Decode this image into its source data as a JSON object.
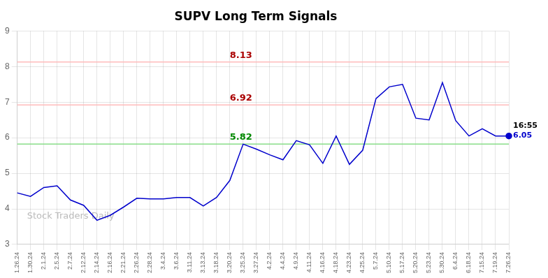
{
  "chart_data": {
    "type": "line",
    "title": "SUPV Long Term Signals",
    "categories": [
      "1.26.24",
      "1.30.24",
      "2.1.24",
      "2.5.24",
      "2.7.24",
      "2.12.24",
      "2.14.24",
      "2.16.24",
      "2.21.24",
      "2.26.24",
      "2.28.24",
      "3.4.24",
      "3.6.24",
      "3.11.24",
      "3.13.24",
      "3.18.24",
      "3.20.24",
      "3.25.24",
      "3.27.24",
      "4.2.24",
      "4.4.24",
      "4.9.24",
      "4.11.24",
      "4.16.24",
      "4.18.24",
      "4.23.24",
      "4.25.24",
      "5.7.24",
      "5.10.24",
      "5.17.24",
      "5.20.24",
      "5.23.24",
      "5.30.24",
      "6.4.24",
      "6.18.24",
      "7.15.24",
      "7.19.24",
      "7.26.24"
    ],
    "values": [
      4.45,
      4.35,
      4.6,
      4.65,
      4.25,
      4.1,
      3.68,
      3.82,
      4.05,
      4.3,
      4.28,
      4.28,
      4.32,
      4.32,
      4.08,
      4.32,
      4.8,
      5.82,
      5.68,
      5.52,
      5.38,
      5.92,
      5.8,
      5.28,
      6.05,
      5.25,
      5.65,
      7.1,
      7.43,
      7.5,
      6.55,
      6.5,
      7.55,
      6.48,
      6.05,
      6.25,
      6.05,
      6.05
    ],
    "color": "#0000cc",
    "hlines": [
      {
        "value": 8.13,
        "label": "8.13",
        "color": "#ffbbbb",
        "label_color": "#aa0000"
      },
      {
        "value": 6.92,
        "label": "6.92",
        "color": "#ffbbbb",
        "label_color": "#aa0000"
      },
      {
        "value": 5.82,
        "label": "5.82",
        "color": "#88dd88",
        "label_color": "#008800"
      }
    ],
    "end_labels": [
      {
        "text": "16:55",
        "color": "#000000"
      },
      {
        "text": "6.05",
        "color": "#0000cc"
      }
    ],
    "watermark": {
      "text": "Stock Traders Daily",
      "color": "#bbbbbb"
    },
    "ylim": [
      3,
      9
    ],
    "yticks": [
      3,
      4,
      5,
      6,
      7,
      8,
      9
    ],
    "grid": true
  }
}
